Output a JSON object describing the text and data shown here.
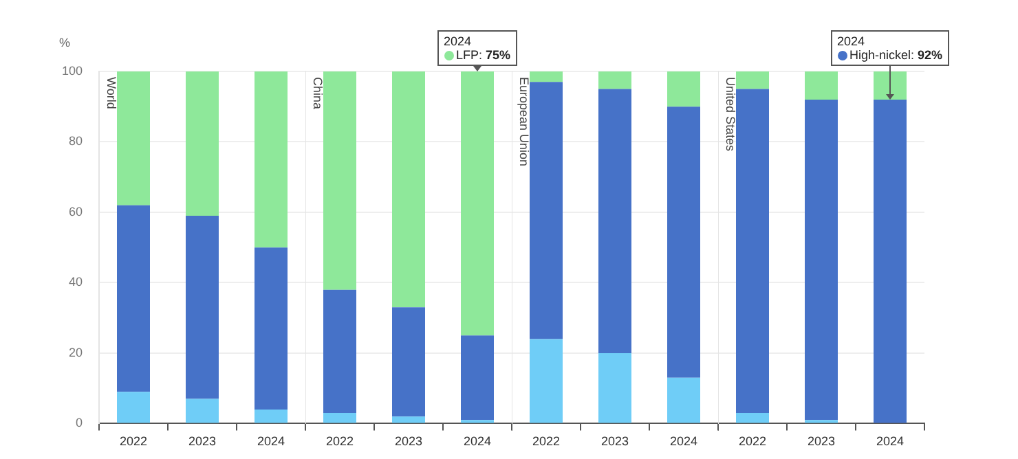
{
  "chart_data": [
    {
      "type": "bar",
      "title": "World",
      "ylabel": "%",
      "categories": [
        "2022",
        "2023",
        "2024"
      ],
      "stacked": true,
      "grid": "y",
      "ylim": [
        0,
        100
      ],
      "yticks": [
        0,
        20,
        40,
        60,
        80,
        100
      ],
      "series": [
        {
          "color": "#6fcdf7",
          "values": [
            9,
            7,
            4
          ]
        },
        {
          "color": "#4672c8",
          "values": [
            53,
            52,
            46
          ]
        },
        {
          "color": "#8ee89a",
          "values": [
            38,
            41,
            50
          ]
        }
      ]
    },
    {
      "type": "bar",
      "title": "China",
      "categories": [
        "2022",
        "2023",
        "2024"
      ],
      "stacked": true,
      "grid": "y",
      "ylim": [
        0,
        100
      ],
      "yticks": [
        0,
        20,
        40,
        60,
        80,
        100
      ],
      "tick_labels": "x",
      "series": [
        {
          "color": "#6fcdf7",
          "values": [
            3,
            2,
            1
          ]
        },
        {
          "color": "#4672c8",
          "values": [
            35,
            31,
            24
          ]
        },
        {
          "color": "#8ee89a",
          "values": [
            62,
            67,
            75
          ]
        }
      ],
      "annotations": [
        {
          "text": "2024\nLFP: 75%",
          "x": "2024",
          "y": 100
        }
      ]
    },
    {
      "type": "bar",
      "title": "European Union",
      "categories": [
        "2022",
        "2023",
        "2024"
      ],
      "stacked": true,
      "grid": "y",
      "ylim": [
        0,
        100
      ],
      "yticks": [
        0,
        20,
        40,
        60,
        80,
        100
      ],
      "tick_labels": "x",
      "series": [
        {
          "color": "#6fcdf7",
          "values": [
            24,
            20,
            13
          ]
        },
        {
          "color": "#4672c8",
          "values": [
            73,
            75,
            77
          ]
        },
        {
          "color": "#8ee89a",
          "values": [
            3,
            5,
            10
          ]
        }
      ]
    },
    {
      "type": "bar",
      "title": "United States",
      "categories": [
        "2022",
        "2023",
        "2024"
      ],
      "stacked": true,
      "grid": "y",
      "ylim": [
        0,
        100
      ],
      "yticks": [
        0,
        20,
        40,
        60,
        80,
        100
      ],
      "tick_labels": "x",
      "series": [
        {
          "color": "#6fcdf7",
          "values": [
            3,
            1,
            0
          ]
        },
        {
          "color": "#4672c8",
          "values": [
            92,
            91,
            92
          ]
        },
        {
          "color": "#8ee89a",
          "values": [
            5,
            8,
            8
          ]
        }
      ],
      "annotations": [
        {
          "text": "2024\nHigh-nickel: 92%",
          "x": "2024",
          "y": 92
        }
      ]
    }
  ]
}
